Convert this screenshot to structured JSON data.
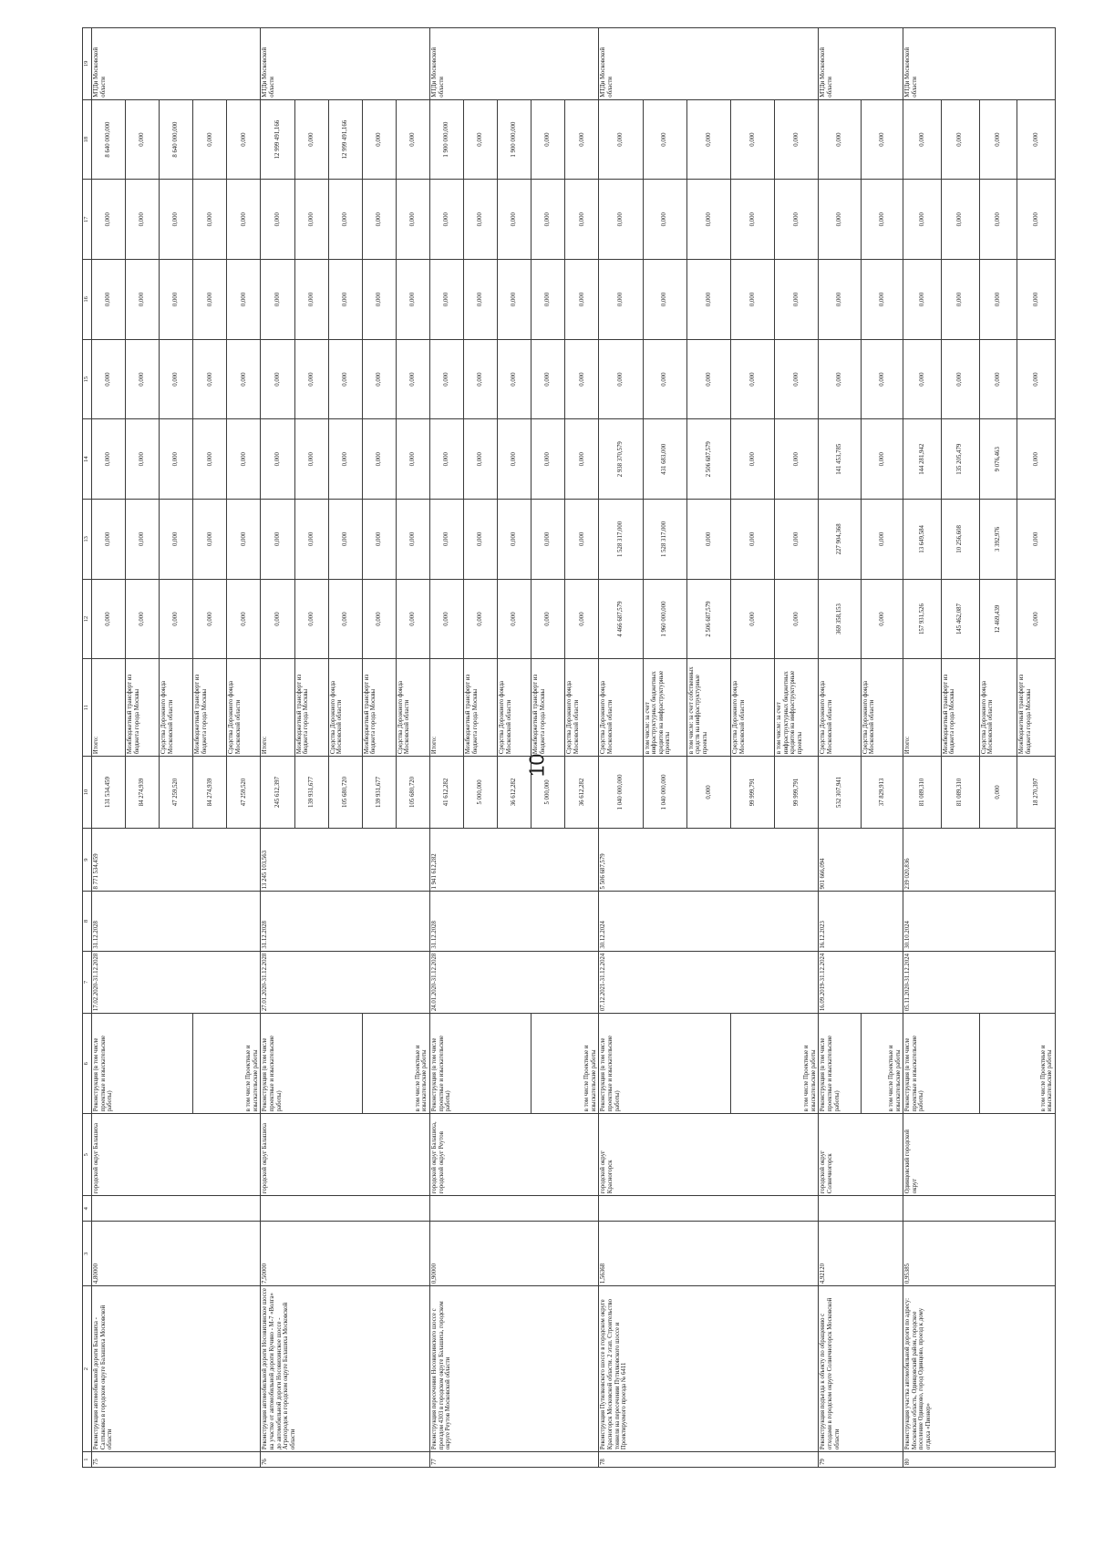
{
  "page_number": "10",
  "header": [
    "1",
    "2",
    "3",
    "4",
    "5",
    "6",
    "7",
    "8",
    "9",
    "10",
    "11",
    "12",
    "13",
    "14",
    "15",
    "16",
    "17",
    "18",
    "19"
  ],
  "rows": [
    {
      "no": "75",
      "name": "Реконструкция автомобильной дороги Балашиха - Салтыковка в городском округе Балашиха Московской области",
      "length": "4,80000",
      "col4": "",
      "district": "городской округ Балашиха",
      "work": "Реконструкция (в том числе проектные и изыскательские работы)",
      "work_sub": "в том числе Проектные и изыскательские работы",
      "period": "17.02.2020-31.12.2028",
      "date_end": "31.12.2028",
      "cost": "8 771 534,459",
      "customer": "МТДи Московской области",
      "lines": [
        {
          "c10": "131 534,459",
          "c11": "Итого:",
          "c12": "0,000",
          "c13": "0,000",
          "c14": "0,000",
          "c15": "0,000",
          "c16": "0,000",
          "c17": "0,000",
          "c18": "8 640 000,000"
        },
        {
          "c10": "84 274,939",
          "c11": "Межбюджетный трансферт из бюджета города Москвы",
          "c12": "0,000",
          "c13": "0,000",
          "c14": "0,000",
          "c15": "0,000",
          "c16": "0,000",
          "c17": "0,000",
          "c18": "0,000"
        },
        {
          "c10": "47 259,520",
          "c11": "Средства Дорожного фонда Московской области",
          "c12": "0,000",
          "c13": "0,000",
          "c14": "0,000",
          "c15": "0,000",
          "c16": "0,000",
          "c17": "0,000",
          "c18": "8 640 000,000"
        },
        {
          "c10": "84 274,939",
          "c11": "Межбюджетный трансферт из бюджета города Москвы",
          "c12": "0,000",
          "c13": "0,000",
          "c14": "0,000",
          "c15": "0,000",
          "c16": "0,000",
          "c17": "0,000",
          "c18": "0,000"
        },
        {
          "c10": "47 259,520",
          "c11": "Средства Дорожного фонда Московской области",
          "c12": "0,000",
          "c13": "0,000",
          "c14": "0,000",
          "c15": "0,000",
          "c16": "0,000",
          "c17": "0,000",
          "c18": "0,000"
        }
      ]
    },
    {
      "no": "76",
      "name": "Реконструкция автомобильной дороги Носовихинское шоссе на участке от автомобильной дороги Кучино - М-7 «Волга» до автомобильной дороги Носовихинское шоссе - Агрогородок в городском округе Балашиха Московской области",
      "length": "7,50000",
      "col4": "",
      "district": "городской округ Балашиха",
      "work": "Реконструкция (в том числе проектные и изыскательские работы)",
      "work_sub": "в том числе Проектные и изыскательские работы",
      "period": "27.01.2020-31.12.2028",
      "date_end": "31.12.2028",
      "cost": "13 245 103,563",
      "customer": "МТДи Московской области",
      "lines": [
        {
          "c10": "245 612,397",
          "c11": "Итого:",
          "c12": "0,000",
          "c13": "0,000",
          "c14": "0,000",
          "c15": "0,000",
          "c16": "0,000",
          "c17": "0,000",
          "c18": "12 999 491,166"
        },
        {
          "c10": "139 931,677",
          "c11": "Межбюджетный трансферт из бюджета города Москвы",
          "c12": "0,000",
          "c13": "0,000",
          "c14": "0,000",
          "c15": "0,000",
          "c16": "0,000",
          "c17": "0,000",
          "c18": "0,000"
        },
        {
          "c10": "105 680,720",
          "c11": "Средства Дорожного фонда Московской области",
          "c12": "0,000",
          "c13": "0,000",
          "c14": "0,000",
          "c15": "0,000",
          "c16": "0,000",
          "c17": "0,000",
          "c18": "12 999 491,166"
        },
        {
          "c10": "139 931,677",
          "c11": "Межбюджетный трансферт из бюджета города Москвы",
          "c12": "0,000",
          "c13": "0,000",
          "c14": "0,000",
          "c15": "0,000",
          "c16": "0,000",
          "c17": "0,000",
          "c18": "0,000"
        },
        {
          "c10": "105 680,720",
          "c11": "Средства Дорожного фонда Московской области",
          "c12": "0,000",
          "c13": "0,000",
          "c14": "0,000",
          "c15": "0,000",
          "c16": "0,000",
          "c17": "0,000",
          "c18": "0,000"
        }
      ]
    },
    {
      "no": "77",
      "name": "Реконструкция пересечения Носовихинского шоссе с проездом 4303 в городском округе Балашиха, городском округе Реутов Московской области",
      "length": "0,90000",
      "col4": "",
      "district": "городской округ Балашиха, городской округ Реутов",
      "work": "Реконструкция (в том числе проектные и изыскательские работы)",
      "work_sub": "в том числе Проектные и изыскательские работы",
      "period": "24.01.2020-31.12.2028",
      "date_end": "31.12.2028",
      "cost": "1 941 612,282",
      "customer": "МТДи Московской области",
      "lines": [
        {
          "c10": "41 612,282",
          "c11": "Итого:",
          "c12": "0,000",
          "c13": "0,000",
          "c14": "0,000",
          "c15": "0,000",
          "c16": "0,000",
          "c17": "0,000",
          "c18": "1 900 000,000"
        },
        {
          "c10": "5 000,000",
          "c11": "Межбюджетный трансферт из бюджета города Москвы",
          "c12": "0,000",
          "c13": "0,000",
          "c14": "0,000",
          "c15": "0,000",
          "c16": "0,000",
          "c17": "0,000",
          "c18": "0,000"
        },
        {
          "c10": "36 612,282",
          "c11": "Средства Дорожного фонда Московской области",
          "c12": "0,000",
          "c13": "0,000",
          "c14": "0,000",
          "c15": "0,000",
          "c16": "0,000",
          "c17": "0,000",
          "c18": "1 900 000,000"
        },
        {
          "c10": "5 000,000",
          "c11": "Межбюджетный трансферт из бюджета города Москвы",
          "c12": "0,000",
          "c13": "0,000",
          "c14": "0,000",
          "c15": "0,000",
          "c16": "0,000",
          "c17": "0,000",
          "c18": "0,000"
        },
        {
          "c10": "36 612,282",
          "c11": "Средства Дорожного фонда Московской области",
          "c12": "0,000",
          "c13": "0,000",
          "c14": "0,000",
          "c15": "0,000",
          "c16": "0,000",
          "c17": "0,000",
          "c18": "0,000"
        }
      ]
    },
    {
      "no": "78",
      "name": "Реконструкция Путилковского шоссе в городском округе Красногорск Московской области. 2 этап. Строительство тоннеля на пересечении Путилковского шоссе и Проектируемого проезда № 6411",
      "length": "1,56368",
      "col4": "",
      "district": "городской округ Красногорск",
      "work": "Реконструкция (в том числе проектные и изыскательские работы)",
      "work_sub": "в том числе Проектные и изыскательские работы",
      "period": "07.12.2021-31.12.2024",
      "date_end": "30.12.2024",
      "cost": "5 506 687,579",
      "customer": "МТДи Московской области",
      "lines": [
        {
          "c10": "1 040 000,000",
          "c11": "Средства Дорожного фонда Московской области",
          "c12": "4 466 687,579",
          "c13": "1 528 317,000",
          "c14": "2 938 370,579",
          "c15": "0,000",
          "c16": "0,000",
          "c17": "0,000",
          "c18": "0,000"
        },
        {
          "c10": "1 040 000,000",
          "c11": "в том числе: за счет инфраструктурных бюджетных кредитов на инфраструктурные проекты",
          "c12": "1 960 000,000",
          "c13": "1 528 317,000",
          "c14": "431 683,000",
          "c15": "0,000",
          "c16": "0,000",
          "c17": "0,000",
          "c18": "0,000"
        },
        {
          "c10": "0,000",
          "c11": "в том числе: за счет собственных средств на инфраструктурные проекты",
          "c12": "2 506 687,579",
          "c13": "0,000",
          "c14": "2 506 687,579",
          "c15": "0,000",
          "c16": "0,000",
          "c17": "0,000",
          "c18": "0,000"
        },
        {
          "c10": "99 999,791",
          "c11": "Средства Дорожного фонда Московской области",
          "c12": "0,000",
          "c13": "0,000",
          "c14": "0,000",
          "c15": "0,000",
          "c16": "0,000",
          "c17": "0,000",
          "c18": "0,000"
        },
        {
          "c10": "99 999,791",
          "c11": "в том числе: за счет инфраструктурных бюджетных кредитов на инфраструктурные проекты",
          "c12": "0,000",
          "c13": "0,000",
          "c14": "0,000",
          "c15": "0,000",
          "c16": "0,000",
          "c17": "0,000",
          "c18": "0,000"
        }
      ]
    },
    {
      "no": "79",
      "name": "Реконструкция подъезда к объекту по обращению с отходами в городском округе Солнечногорск Московской области",
      "length": "4,92120",
      "col4": "",
      "district": "городской округ Солнечногорск",
      "work": "Реконструкция (в том числе проектные и изыскательские работы)",
      "work_sub": "в том числе Проектные и изыскательские работы",
      "period": "16.09.2019-31.12.2024",
      "date_end": "16.12.2023",
      "cost": "901 666,094",
      "customer": "МТДи Московской области",
      "lines": [
        {
          "c10": "532 307,941",
          "c11": "Средства Дорожного фонда Московской области",
          "c12": "369 358,153",
          "c13": "227 904,368",
          "c14": "141 453,785",
          "c15": "0,000",
          "c16": "0,000",
          "c17": "0,000",
          "c18": "0,000"
        },
        {
          "c10": "37 829,913",
          "c11": "Средства Дорожного фонда Московской области",
          "c12": "0,000",
          "c13": "0,000",
          "c14": "0,000",
          "c15": "0,000",
          "c16": "0,000",
          "c17": "0,000",
          "c18": "0,000"
        }
      ]
    },
    {
      "no": "80",
      "name": "Реконструкция участка автомобильной дороги по адресу: Московская область, Одинцовский район, городское поселение Одинцово, город Одинцово, проезд к дому отдыха «Пионер»",
      "length": "0,95385",
      "col4": "",
      "district": "Одинцовский городской округ",
      "work": "Реконструкция (в том числе проектные и изыскательские работы)",
      "work_sub": "в том числе Проектные и изыскательские работы",
      "period": "05.11.2020-31.12.2024",
      "date_end": "30.10.2024",
      "cost": "239 020,836",
      "customer": "МТДи Московской области",
      "lines": [
        {
          "c10": "81 089,310",
          "c11": "Итого:",
          "c12": "157 931,526",
          "c13": "13 649,584",
          "c14": "144 281,942",
          "c15": "0,000",
          "c16": "0,000",
          "c17": "0,000",
          "c18": "0,000"
        },
        {
          "c10": "81 089,310",
          "c11": "Межбюджетный трансферт из бюджета города Москвы",
          "c12": "145 462,087",
          "c13": "10 256,608",
          "c14": "135 205,479",
          "c15": "0,000",
          "c16": "0,000",
          "c17": "0,000",
          "c18": "0,000"
        },
        {
          "c10": "0,000",
          "c11": "Средства Дорожного фонда Московской области",
          "c12": "12 469,439",
          "c13": "3 392,976",
          "c14": "9 076,463",
          "c15": "0,000",
          "c16": "0,000",
          "c17": "0,000",
          "c18": "0,000"
        },
        {
          "c10": "18 270,397",
          "c11": "Межбюджетный трансферт из бюджета города Москвы",
          "c12": "0,000",
          "c13": "0,000",
          "c14": "0,000",
          "c15": "0,000",
          "c16": "0,000",
          "c17": "0,000",
          "c18": "0,000"
        }
      ]
    }
  ]
}
